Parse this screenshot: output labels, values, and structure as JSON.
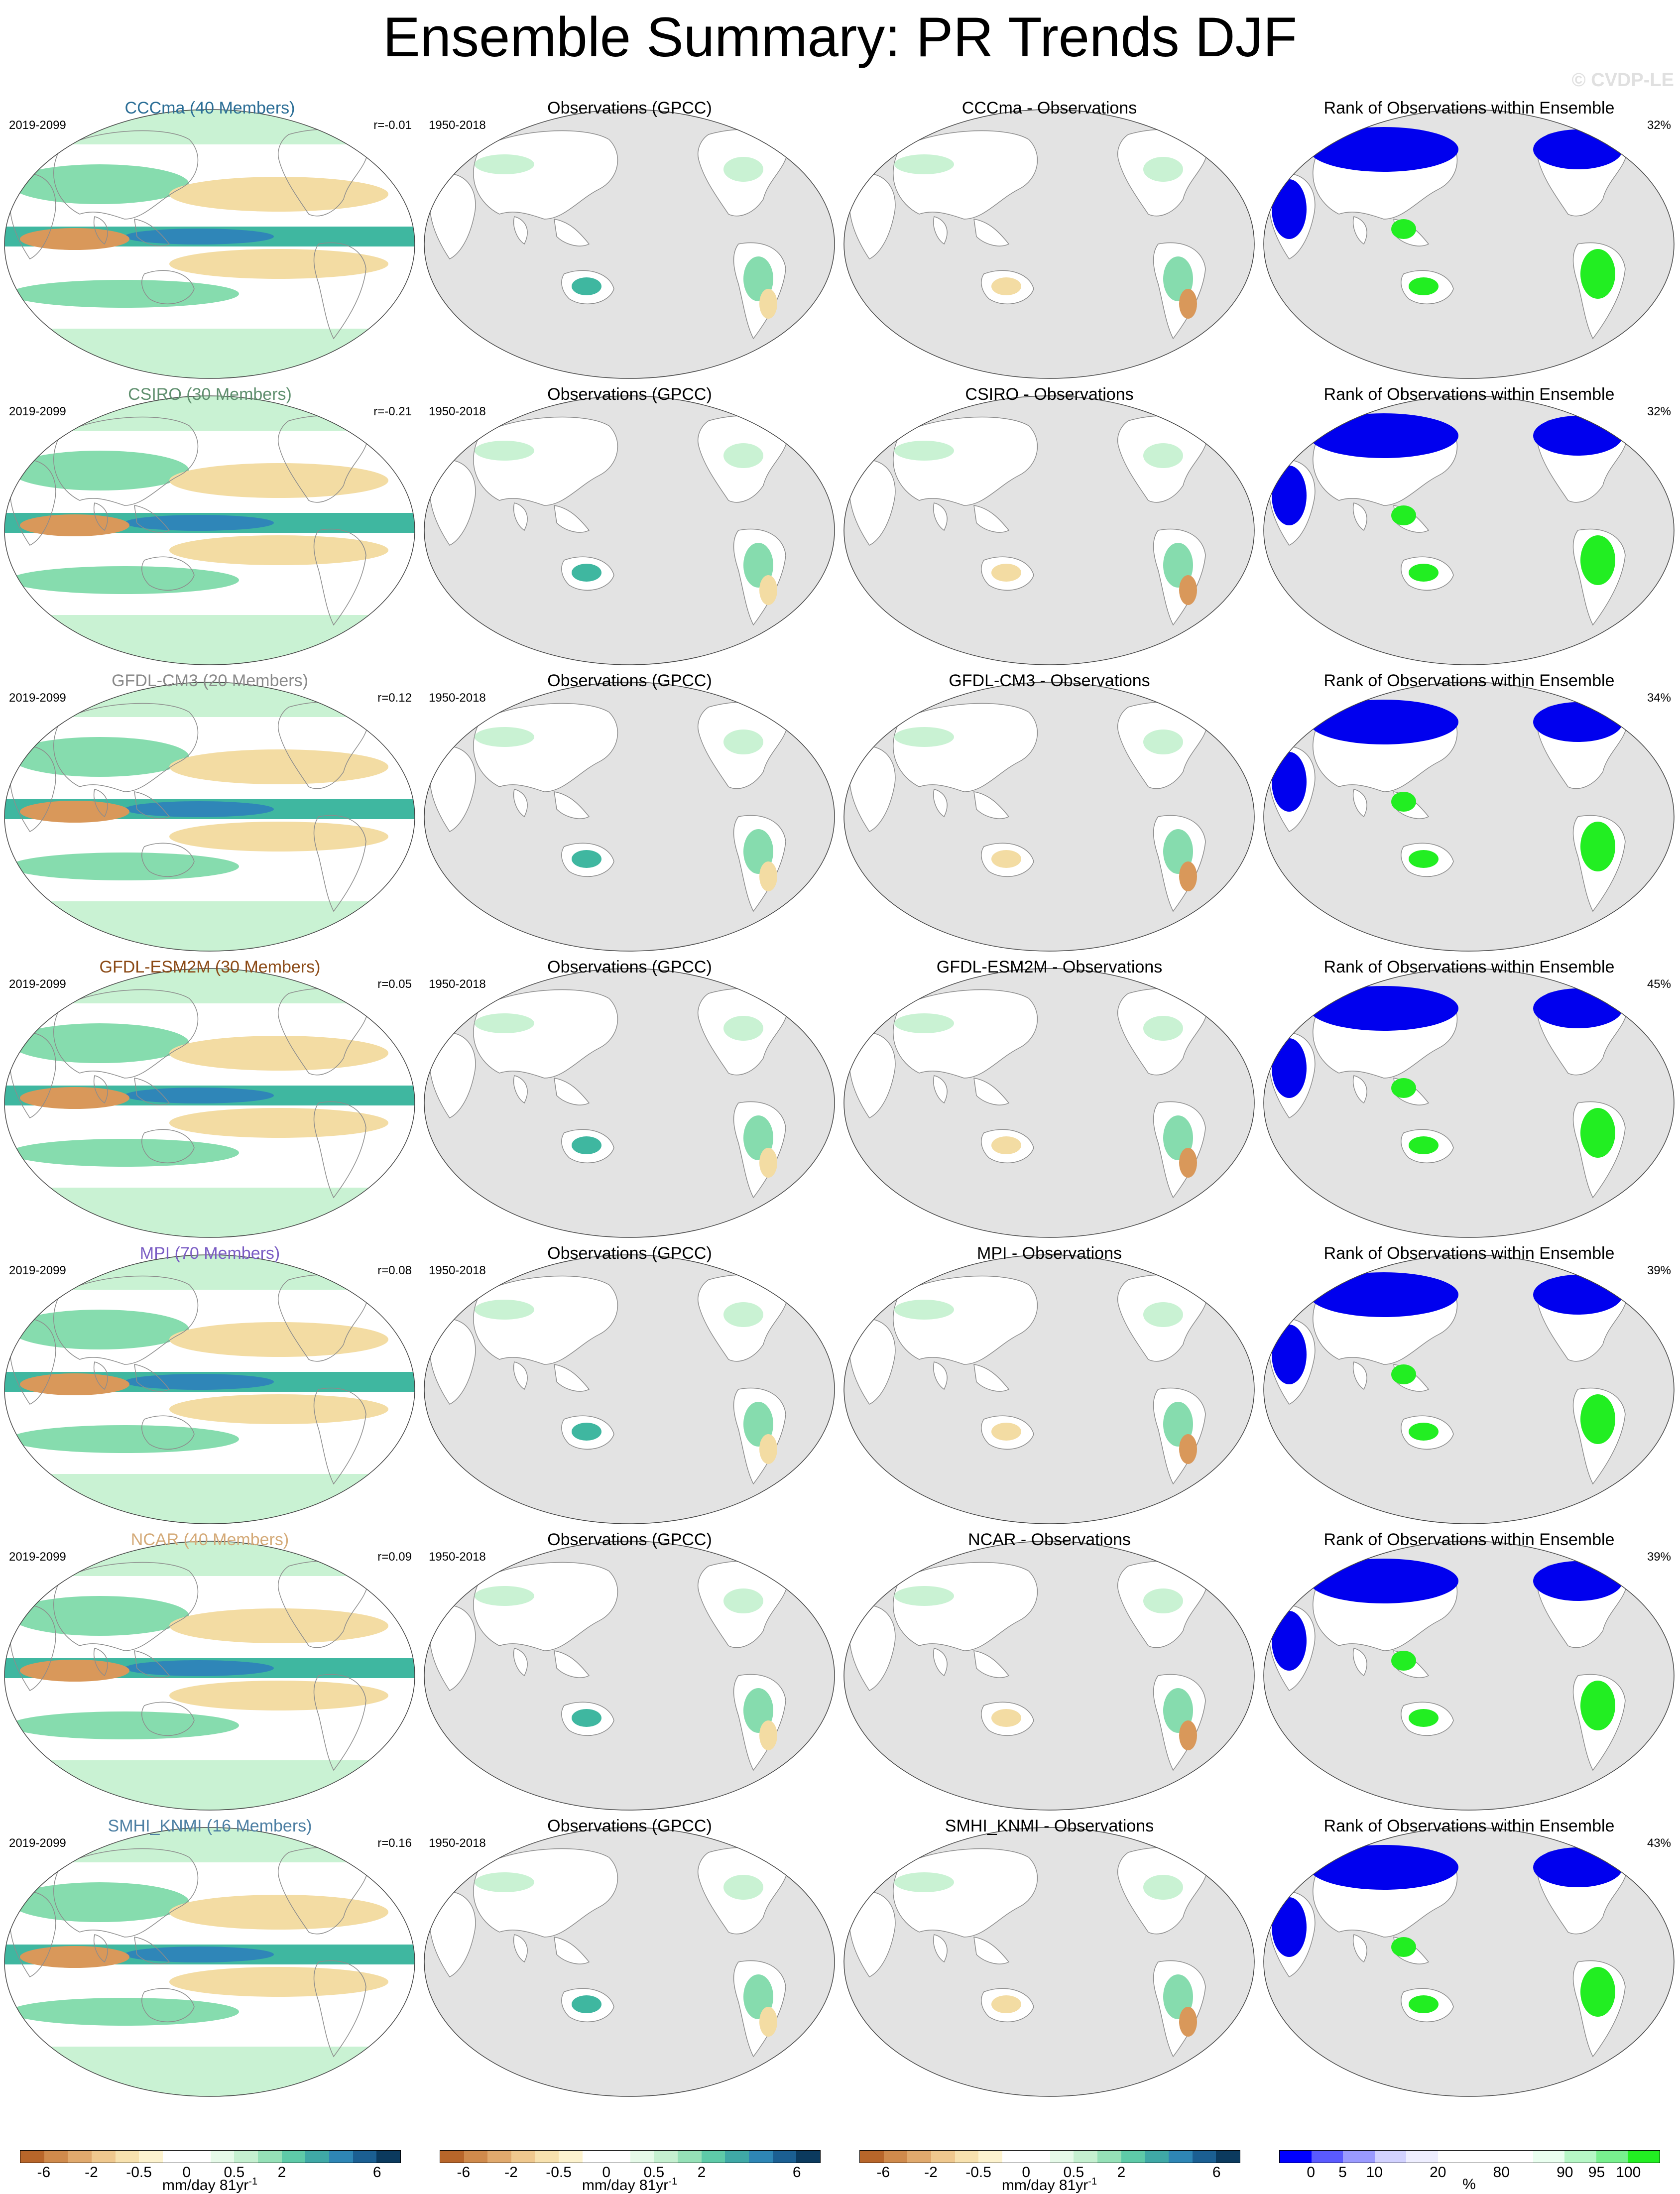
{
  "title": "Ensemble Summary: PR Trends DJF",
  "watermark": "© CVDP-LE",
  "colors": {
    "ocean": "#e3e3e3",
    "land_white": "#ffffff",
    "green_light": "#c9f2d3",
    "green_mid": "#86dcae",
    "teal": "#3fb7a0",
    "blue": "#2f86b8",
    "tan": "#f3dca3",
    "brown": "#d9985a",
    "rank_blue": "#0000ee",
    "rank_green": "#22ee22"
  },
  "rows": [
    {
      "model": "CCCma (40 Members)",
      "model_color": "#2b6e96",
      "period": "2019-2099",
      "r": "r=-0.01",
      "obs_title": "Observations (GPCC)",
      "obs_period": "1950-2018",
      "diff_title": "CCCma - Observations",
      "rank_title": "Rank of Observations within Ensemble",
      "rank_pct": "32%"
    },
    {
      "model": "CSIRO (30 Members)",
      "model_color": "#5f8f6e",
      "period": "2019-2099",
      "r": "r=-0.21",
      "obs_title": "Observations (GPCC)",
      "obs_period": "1950-2018",
      "diff_title": "CSIRO - Observations",
      "rank_title": "Rank of Observations within Ensemble",
      "rank_pct": "32%"
    },
    {
      "model": "GFDL-CM3 (20 Members)",
      "model_color": "#8a8a8a",
      "period": "2019-2099",
      "r": "r=0.12",
      "obs_title": "Observations (GPCC)",
      "obs_period": "1950-2018",
      "diff_title": "GFDL-CM3 - Observations",
      "rank_title": "Rank of Observations within Ensemble",
      "rank_pct": "34%"
    },
    {
      "model": "GFDL-ESM2M (30 Members)",
      "model_color": "#8b4a16",
      "period": "2019-2099",
      "r": "r=0.05",
      "obs_title": "Observations (GPCC)",
      "obs_period": "1950-2018",
      "diff_title": "GFDL-ESM2M - Observations",
      "rank_title": "Rank of Observations within Ensemble",
      "rank_pct": "45%"
    },
    {
      "model": "MPI (70 Members)",
      "model_color": "#7a5cc4",
      "period": "2019-2099",
      "r": "r=0.08",
      "obs_title": "Observations (GPCC)",
      "obs_period": "1950-2018",
      "diff_title": "MPI - Observations",
      "rank_title": "Rank of Observations within Ensemble",
      "rank_pct": "39%"
    },
    {
      "model": "NCAR (40 Members)",
      "model_color": "#d4aa78",
      "period": "2019-2099",
      "r": "r=0.09",
      "obs_title": "Observations (GPCC)",
      "obs_period": "1950-2018",
      "diff_title": "NCAR - Observations",
      "rank_title": "Rank of Observations within Ensemble",
      "rank_pct": "39%"
    },
    {
      "model": "SMHI_KNMI (16 Members)",
      "model_color": "#4d7fa3",
      "period": "2019-2099",
      "r": "r=0.16",
      "obs_title": "Observations (GPCC)",
      "obs_period": "1950-2018",
      "diff_title": "SMHI_KNMI - Observations",
      "rank_title": "Rank of Observations within Ensemble",
      "rank_pct": "43%"
    }
  ],
  "colorbars": [
    {
      "colors": [
        "#b8662a",
        "#cf8a4c",
        "#e0a96d",
        "#efc88e",
        "#f7e1ae",
        "#fdf3cf",
        "#ffffff",
        "#ffffff",
        "#e6fae9",
        "#c5f0d0",
        "#95e0b7",
        "#5ecaa8",
        "#3fa8a6",
        "#2e86b5",
        "#1b5f92",
        "#0b3a5e"
      ],
      "ticks": [
        {
          "label": "-6",
          "frac": 0.0625
        },
        {
          "label": "-2",
          "frac": 0.1875
        },
        {
          "label": "-0.5",
          "frac": 0.3125
        },
        {
          "label": "0",
          "frac": 0.4375
        },
        {
          "label": "0.5",
          "frac": 0.5625
        },
        {
          "label": "2",
          "frac": 0.6875
        },
        {
          "label": "6",
          "frac": 0.9375
        }
      ],
      "label": "mm/day 81yr",
      "label_sup": "-1"
    },
    {
      "colors": [
        "#b8662a",
        "#cf8a4c",
        "#e0a96d",
        "#efc88e",
        "#f7e1ae",
        "#fdf3cf",
        "#ffffff",
        "#ffffff",
        "#e6fae9",
        "#c5f0d0",
        "#95e0b7",
        "#5ecaa8",
        "#3fa8a6",
        "#2e86b5",
        "#1b5f92",
        "#0b3a5e"
      ],
      "ticks": [
        {
          "label": "-6",
          "frac": 0.0625
        },
        {
          "label": "-2",
          "frac": 0.1875
        },
        {
          "label": "-0.5",
          "frac": 0.3125
        },
        {
          "label": "0",
          "frac": 0.4375
        },
        {
          "label": "0.5",
          "frac": 0.5625
        },
        {
          "label": "2",
          "frac": 0.6875
        },
        {
          "label": "6",
          "frac": 0.9375
        }
      ],
      "label": "mm/day 81yr",
      "label_sup": "-1"
    },
    {
      "colors": [
        "#b8662a",
        "#cf8a4c",
        "#e0a96d",
        "#efc88e",
        "#f7e1ae",
        "#fdf3cf",
        "#ffffff",
        "#ffffff",
        "#e6fae9",
        "#c5f0d0",
        "#95e0b7",
        "#5ecaa8",
        "#3fa8a6",
        "#2e86b5",
        "#1b5f92",
        "#0b3a5e"
      ],
      "ticks": [
        {
          "label": "-6",
          "frac": 0.0625
        },
        {
          "label": "-2",
          "frac": 0.1875
        },
        {
          "label": "-0.5",
          "frac": 0.3125
        },
        {
          "label": "0",
          "frac": 0.4375
        },
        {
          "label": "0.5",
          "frac": 0.5625
        },
        {
          "label": "2",
          "frac": 0.6875
        },
        {
          "label": "6",
          "frac": 0.9375
        }
      ],
      "label": "mm/day 81yr",
      "label_sup": "-1"
    },
    {
      "colors": [
        "#0000ff",
        "#5a5aff",
        "#9a9aff",
        "#d2d2ff",
        "#eeeeff",
        "#ffffff",
        "#ffffff",
        "#ffffff",
        "#eafff0",
        "#b6f7c6",
        "#78f08e",
        "#22ee22"
      ],
      "ticks": [
        {
          "label": "0",
          "frac": 0.0833
        },
        {
          "label": "5",
          "frac": 0.1667
        },
        {
          "label": "10",
          "frac": 0.25
        },
        {
          "label": "20",
          "frac": 0.4167
        },
        {
          "label": "80",
          "frac": 0.5833
        },
        {
          "label": "90",
          "frac": 0.75
        },
        {
          "label": "95",
          "frac": 0.8333
        },
        {
          "label": "100",
          "frac": 0.9167
        }
      ],
      "label": "%",
      "label_sup": ""
    }
  ]
}
